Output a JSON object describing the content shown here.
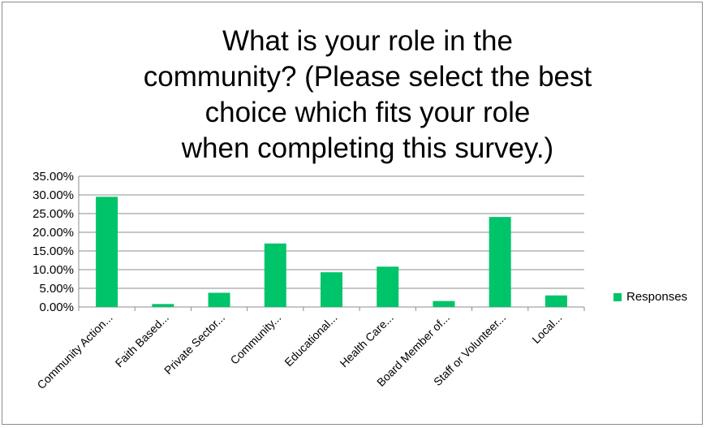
{
  "chart_data": {
    "type": "bar",
    "title_lines": [
      "What is your role in the",
      "community?  (Please select the best",
      "choice which fits your role",
      "when completing this survey.)"
    ],
    "categories": [
      "Community Action...",
      "Faith Based...",
      "Private Sector...",
      "Community...",
      "Educational...",
      "Health Care...",
      "Board Member of...",
      "Staff or Volunteer...",
      "Local..."
    ],
    "series": [
      {
        "name": "Responses",
        "color": "#00c46a",
        "values": [
          0.295,
          0.008,
          0.038,
          0.17,
          0.093,
          0.108,
          0.016,
          0.241,
          0.031
        ]
      }
    ],
    "ylim": [
      0,
      0.35
    ],
    "yticks": [
      0,
      0.05,
      0.1,
      0.15,
      0.2,
      0.25,
      0.3,
      0.35
    ],
    "ytick_labels": [
      "0.00%",
      "5.00%",
      "10.00%",
      "15.00%",
      "20.00%",
      "25.00%",
      "30.00%",
      "35.00%"
    ],
    "grid": true,
    "legend_position": "right"
  }
}
